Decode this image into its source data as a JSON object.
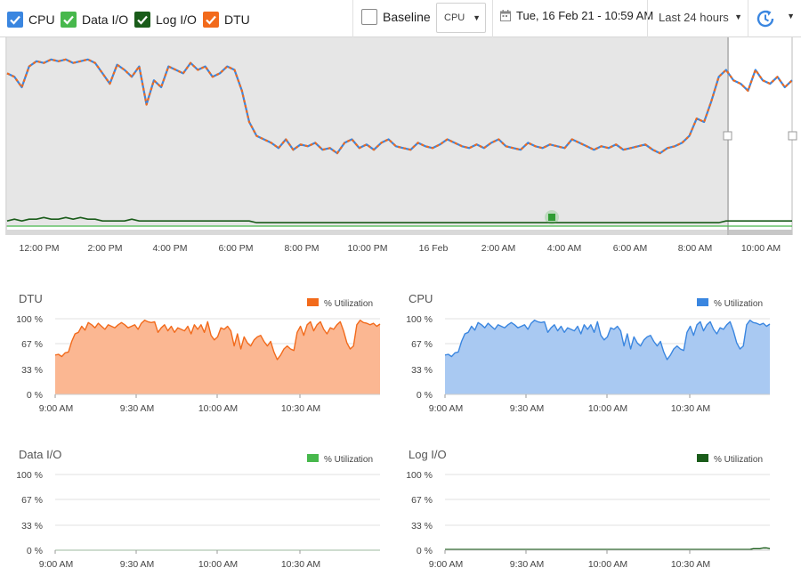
{
  "toolbar": {
    "series_toggles": [
      {
        "label": "CPU",
        "color": "#3a86e0",
        "checked": true
      },
      {
        "label": "Data I/O",
        "color": "#47b84c",
        "checked": true
      },
      {
        "label": "Log I/O",
        "color": "#1a5c1a",
        "checked": true
      },
      {
        "label": "DTU",
        "color": "#f26a1b",
        "checked": true
      }
    ],
    "baseline_label": "Baseline",
    "baseline_checked": false,
    "metric_select_value": "CPU",
    "date_label": "Tue, 16 Feb 21 - 10:59 AM",
    "range_select_value": "Last 24 hours",
    "refresh_icon": "refresh-clock-icon"
  },
  "colors": {
    "cpu": "#3a86e0",
    "data_io": "#47b84c",
    "log_io": "#1a5c1a",
    "dtu": "#f26a1b",
    "dtu_fill": "#fbb792",
    "cpu_fill": "#a9c9f2",
    "overview_bg": "#e6e6e6"
  },
  "chart_data": [
    {
      "id": "overview",
      "type": "line",
      "x_tick_labels": [
        "12:00 PM",
        "2:00 PM",
        "4:00 PM",
        "6:00 PM",
        "8:00 PM",
        "10:00 PM",
        "16 Feb",
        "2:00 AM",
        "4:00 AM",
        "6:00 AM",
        "8:00 AM",
        "10:00 AM"
      ],
      "x_start": "11:00 AM",
      "x_end": "10:59 AM",
      "selection": {
        "start": "9:00 AM",
        "end": "10:59 AM"
      },
      "series": [
        {
          "name": "CPU",
          "values": [
            88,
            86,
            80,
            92,
            95,
            94,
            96,
            95,
            96,
            94,
            95,
            96,
            94,
            88,
            82,
            93,
            90,
            86,
            92,
            70,
            84,
            80,
            92,
            90,
            88,
            94,
            90,
            92,
            86,
            88,
            92,
            90,
            78,
            60,
            52,
            50,
            48,
            45,
            50,
            44,
            47,
            46,
            48,
            44,
            45,
            42,
            48,
            50,
            45,
            47,
            44,
            48,
            50,
            46,
            45,
            44,
            48,
            46,
            45,
            47,
            50,
            48,
            46,
            45,
            47,
            45,
            48,
            50,
            46,
            45,
            44,
            48,
            46,
            45,
            47,
            46,
            45,
            50,
            48,
            46,
            44,
            46,
            45,
            47,
            44,
            45,
            46,
            47,
            44,
            42,
            45,
            46,
            48,
            52,
            62,
            60,
            72,
            86,
            90,
            84,
            82,
            78,
            90,
            84,
            82,
            86,
            80,
            84
          ]
        },
        {
          "name": "DTU",
          "values": [
            88,
            86,
            80,
            92,
            95,
            94,
            96,
            95,
            96,
            94,
            95,
            96,
            94,
            88,
            82,
            93,
            90,
            86,
            92,
            70,
            84,
            80,
            92,
            90,
            88,
            94,
            90,
            92,
            86,
            88,
            92,
            90,
            78,
            60,
            52,
            50,
            48,
            45,
            50,
            44,
            47,
            46,
            48,
            44,
            45,
            42,
            48,
            50,
            45,
            47,
            44,
            48,
            50,
            46,
            45,
            44,
            48,
            46,
            45,
            47,
            50,
            48,
            46,
            45,
            47,
            45,
            48,
            50,
            46,
            45,
            44,
            48,
            46,
            45,
            47,
            46,
            45,
            50,
            48,
            46,
            44,
            46,
            45,
            47,
            44,
            45,
            46,
            47,
            44,
            42,
            45,
            46,
            48,
            52,
            62,
            60,
            72,
            86,
            90,
            84,
            82,
            78,
            90,
            84,
            82,
            86,
            80,
            84
          ]
        },
        {
          "name": "Log I/O",
          "values": [
            3,
            4,
            3,
            4,
            4,
            5,
            4,
            4,
            5,
            4,
            5,
            4,
            4,
            3,
            3,
            3,
            3,
            4,
            3,
            3,
            3,
            3,
            3,
            3,
            3,
            3,
            3,
            3,
            3,
            3,
            3,
            3,
            3,
            3,
            2,
            2,
            2,
            2,
            2,
            2,
            2,
            2,
            2,
            2,
            2,
            2,
            2,
            2,
            2,
            2,
            2,
            2,
            2,
            2,
            2,
            2,
            2,
            2,
            2,
            2,
            2,
            2,
            2,
            2,
            2,
            2,
            2,
            2,
            2,
            2,
            2,
            2,
            2,
            2,
            2,
            2,
            2,
            2,
            2,
            2,
            2,
            2,
            2,
            2,
            2,
            2,
            2,
            2,
            2,
            2,
            2,
            2,
            2,
            2,
            2,
            2,
            2,
            2,
            3,
            3,
            3,
            3,
            3,
            3,
            3,
            3,
            3,
            3
          ]
        },
        {
          "name": "Data I/O",
          "values": [
            0,
            0,
            0,
            0,
            0,
            0,
            0,
            0,
            0,
            0,
            0,
            0,
            0,
            0,
            0,
            0,
            0,
            0,
            0,
            0,
            0,
            0,
            0,
            0,
            0,
            0,
            0,
            0,
            0,
            0,
            0,
            0,
            0,
            0,
            0,
            0,
            0,
            0,
            0,
            0,
            0,
            0,
            0,
            0,
            0,
            0,
            0,
            0,
            0,
            0,
            0,
            0,
            0,
            0,
            0,
            0,
            0,
            0,
            0,
            0,
            0,
            0,
            0,
            0,
            0,
            0,
            0,
            0,
            0,
            0,
            0,
            0,
            0,
            0,
            0,
            0,
            0,
            0,
            0,
            0,
            0,
            0,
            0,
            0,
            0,
            0,
            0,
            0,
            0,
            0,
            0,
            0,
            0,
            0,
            0,
            0,
            0,
            0,
            0,
            0,
            0,
            0,
            0,
            0,
            0,
            0,
            0,
            0
          ]
        }
      ],
      "ylim": [
        0,
        100
      ]
    },
    {
      "id": "dtu",
      "type": "area",
      "title": "DTU",
      "legend": "% Utilization",
      "color_key": "dtu",
      "y_ticks": [
        "0 %",
        "33 %",
        "67 %",
        "100 %"
      ],
      "ylim": [
        0,
        100
      ],
      "x_start": "9:00 AM",
      "x_end": "10:59 AM",
      "x_tick_labels": [
        "9:00 AM",
        "9:30 AM",
        "10:00 AM",
        "10:30 AM"
      ],
      "values": [
        52,
        53,
        50,
        55,
        56,
        70,
        80,
        82,
        90,
        85,
        95,
        92,
        88,
        94,
        90,
        86,
        92,
        90,
        88,
        92,
        95,
        92,
        88,
        90,
        92,
        86,
        94,
        98,
        96,
        95,
        96,
        82,
        88,
        92,
        84,
        90,
        82,
        88,
        86,
        84,
        90,
        80,
        92,
        86,
        92,
        82,
        96,
        78,
        72,
        76,
        88,
        86,
        90,
        84,
        64,
        80,
        60,
        76,
        68,
        64,
        72,
        76,
        78,
        70,
        64,
        70,
        56,
        46,
        52,
        60,
        64,
        60,
        58,
        82,
        90,
        78,
        92,
        96,
        84,
        92,
        96,
        86,
        80,
        88,
        86,
        92,
        96,
        84,
        68,
        60,
        64,
        92,
        98,
        95,
        94,
        92,
        94,
        90,
        93
      ]
    },
    {
      "id": "cpu",
      "type": "area",
      "title": "CPU",
      "legend": "% Utilization",
      "color_key": "cpu",
      "y_ticks": [
        "0 %",
        "33 %",
        "67 %",
        "100 %"
      ],
      "ylim": [
        0,
        100
      ],
      "x_start": "9:00 AM",
      "x_end": "10:59 AM",
      "x_tick_labels": [
        "9:00 AM",
        "9:30 AM",
        "10:00 AM",
        "10:30 AM"
      ],
      "values": [
        52,
        53,
        50,
        55,
        56,
        70,
        80,
        82,
        90,
        85,
        95,
        92,
        88,
        94,
        90,
        86,
        92,
        90,
        88,
        92,
        95,
        92,
        88,
        90,
        92,
        86,
        94,
        98,
        96,
        95,
        96,
        82,
        88,
        92,
        84,
        90,
        82,
        88,
        86,
        84,
        90,
        80,
        92,
        86,
        92,
        82,
        96,
        78,
        72,
        76,
        88,
        86,
        90,
        84,
        64,
        80,
        60,
        76,
        68,
        64,
        72,
        76,
        78,
        70,
        64,
        70,
        56,
        46,
        52,
        60,
        64,
        60,
        58,
        82,
        90,
        78,
        92,
        96,
        84,
        92,
        96,
        86,
        80,
        88,
        86,
        92,
        96,
        84,
        68,
        60,
        64,
        92,
        98,
        95,
        94,
        92,
        94,
        90,
        93
      ]
    },
    {
      "id": "dataio",
      "type": "area",
      "title": "Data I/O",
      "legend": "% Utilization",
      "color_key": "data_io",
      "y_ticks": [
        "0 %",
        "33 %",
        "67 %",
        "100 %"
      ],
      "ylim": [
        0,
        100
      ],
      "x_start": "9:00 AM",
      "x_end": "10:59 AM",
      "x_tick_labels": [
        "9:00 AM",
        "9:30 AM",
        "10:00 AM",
        "10:30 AM"
      ],
      "values": [
        0,
        0,
        0,
        0,
        0,
        0,
        0,
        0,
        0,
        0,
        0,
        0,
        0,
        0,
        0,
        0,
        0,
        0,
        0,
        0,
        0,
        0,
        0,
        0,
        0,
        0,
        0,
        0,
        0,
        0,
        0,
        0,
        0,
        0,
        0,
        0,
        0,
        0,
        0,
        0,
        0,
        0,
        0,
        0,
        0,
        0,
        0,
        0,
        0,
        0,
        0,
        0,
        0,
        0,
        0,
        0,
        0,
        0,
        0,
        0,
        0,
        0,
        0,
        0,
        0,
        0,
        0,
        0,
        0,
        0,
        0,
        0,
        0,
        0,
        0,
        0,
        0,
        0,
        0,
        0,
        0,
        0,
        0,
        0,
        0,
        0,
        0,
        0,
        0,
        0,
        0,
        0,
        0,
        0,
        0,
        0,
        0,
        0,
        0
      ]
    },
    {
      "id": "logio",
      "type": "area",
      "title": "Log I/O",
      "legend": "% Utilization",
      "color_key": "log_io",
      "y_ticks": [
        "0 %",
        "33 %",
        "67 %",
        "100 %"
      ],
      "ylim": [
        0,
        100
      ],
      "x_start": "9:00 AM",
      "x_end": "10:59 AM",
      "x_tick_labels": [
        "9:00 AM",
        "9:30 AM",
        "10:00 AM",
        "10:30 AM"
      ],
      "values": [
        1,
        1,
        1,
        1,
        1,
        1,
        1,
        1,
        1,
        1,
        1,
        1,
        1,
        1,
        1,
        1,
        1,
        1,
        1,
        1,
        1,
        1,
        1,
        1,
        1,
        1,
        1,
        1,
        1,
        1,
        1,
        1,
        1,
        1,
        1,
        1,
        1,
        1,
        1,
        1,
        1,
        1,
        1,
        1,
        1,
        1,
        1,
        1,
        1,
        1,
        1,
        1,
        1,
        1,
        1,
        1,
        1,
        1,
        1,
        1,
        1,
        1,
        1,
        1,
        1,
        1,
        1,
        1,
        1,
        1,
        1,
        1,
        1,
        1,
        1,
        1,
        1,
        1,
        1,
        1,
        1,
        1,
        1,
        1,
        1,
        1,
        1,
        1,
        1,
        1,
        1,
        1,
        1,
        2,
        2,
        2,
        3,
        3,
        2
      ]
    }
  ]
}
